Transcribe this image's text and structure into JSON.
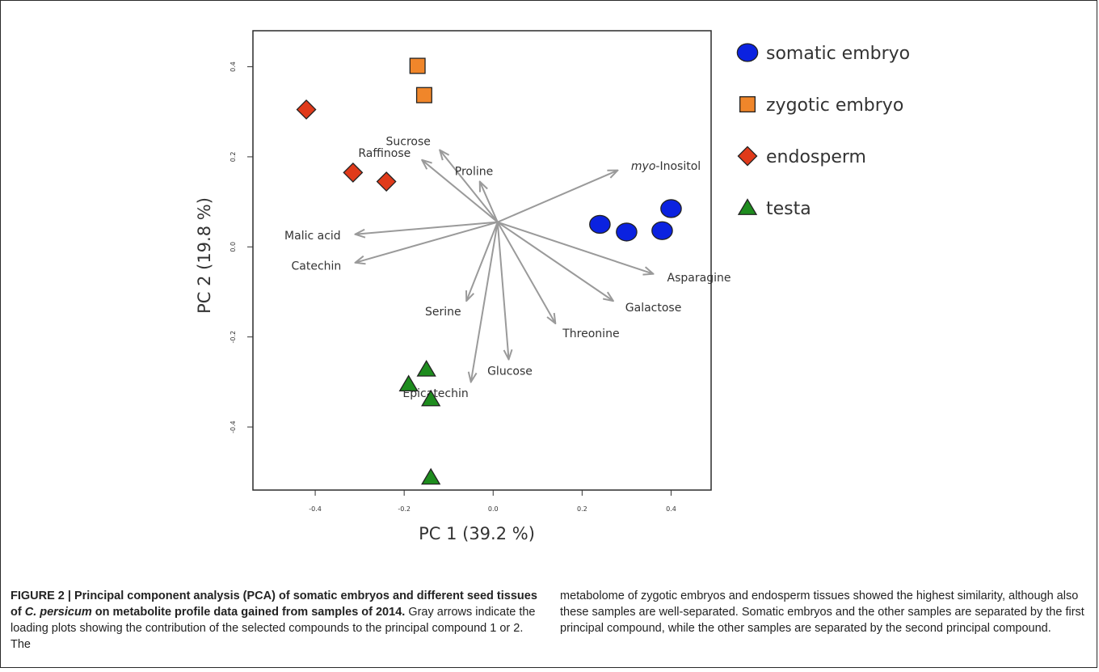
{
  "chart_data": {
    "type": "scatter",
    "title": "",
    "xlabel": "PC 1 (39.2 %)",
    "ylabel": "PC 2 (19.8 %)",
    "xlim": [
      -0.54,
      0.49
    ],
    "ylim": [
      -0.54,
      0.48
    ],
    "x_ticks": [
      -0.4,
      -0.2,
      0.0,
      0.2,
      0.4
    ],
    "x_tick_labels": [
      "-0.4",
      "-0.2",
      "0.0",
      "0.2",
      "0.4"
    ],
    "y_ticks": [
      -0.4,
      -0.2,
      0.0,
      0.2,
      0.4
    ],
    "y_tick_labels": [
      "-0.4",
      "-0.2",
      "0.0",
      "0.2",
      "0.4"
    ],
    "grid": false,
    "legend_position": "right",
    "series": [
      {
        "name": "somatic embryo",
        "marker": "circle",
        "color": "#0b22e0",
        "points": [
          [
            0.24,
            0.05
          ],
          [
            0.3,
            0.033
          ],
          [
            0.38,
            0.036
          ],
          [
            0.4,
            0.085
          ]
        ]
      },
      {
        "name": "zygotic embryo",
        "marker": "square",
        "color": "#f0862a",
        "points": [
          [
            -0.17,
            0.402
          ],
          [
            -0.155,
            0.337
          ]
        ]
      },
      {
        "name": "endosperm",
        "marker": "diamond",
        "color": "#e03a1a",
        "points": [
          [
            -0.42,
            0.305
          ],
          [
            -0.315,
            0.165
          ],
          [
            -0.24,
            0.145
          ]
        ]
      },
      {
        "name": "testa",
        "marker": "triangle",
        "color": "#1e8c1e",
        "points": [
          [
            -0.15,
            -0.272
          ],
          [
            -0.19,
            -0.305
          ],
          [
            -0.14,
            -0.338
          ],
          [
            -0.14,
            -0.512
          ]
        ]
      }
    ],
    "arrows": {
      "origin": [
        0.01,
        0.055
      ],
      "color": "#9a9a9a",
      "items": [
        {
          "label": "myo-Inositol",
          "label_prefix": "myo",
          "label_suffix": "-Inositol",
          "to": [
            0.28,
            0.17
          ]
        },
        {
          "label": "Sucrose",
          "to": [
            -0.12,
            0.215
          ]
        },
        {
          "label": "Raffinose",
          "to": [
            -0.16,
            0.193
          ]
        },
        {
          "label": "Proline",
          "to": [
            -0.03,
            0.145
          ]
        },
        {
          "label": "Malic acid",
          "to": [
            -0.31,
            0.028
          ]
        },
        {
          "label": "Catechin",
          "to": [
            -0.31,
            -0.035
          ]
        },
        {
          "label": "Asparagine",
          "to": [
            0.36,
            -0.06
          ]
        },
        {
          "label": "Galactose",
          "to": [
            0.27,
            -0.12
          ]
        },
        {
          "label": "Threonine",
          "to": [
            0.14,
            -0.17
          ]
        },
        {
          "label": "Serine",
          "to": [
            -0.06,
            -0.12
          ]
        },
        {
          "label": "Glucose",
          "to": [
            0.035,
            -0.25
          ]
        },
        {
          "label": "Epicatechin",
          "to": [
            -0.05,
            -0.3
          ]
        }
      ]
    }
  },
  "caption": {
    "figure_label": "FIGURE 2 | Principal component analysis (PCA) of somatic embryos and different seed tissues of ",
    "species": "C. persicum",
    "title_rest": " on metabolite profile data gained from samples of 2014.",
    "text_left": " Gray arrows indicate the loading plots showing the contribution of the selected compounds to the principal compound 1 or 2. The",
    "text_right": "metabolome of zygotic embryos and endosperm tissues showed the highest similarity, although also these samples are well-separated. Somatic embryos and the other samples are separated by the first principal compound, while the other samples are separated by the second principal compound."
  }
}
